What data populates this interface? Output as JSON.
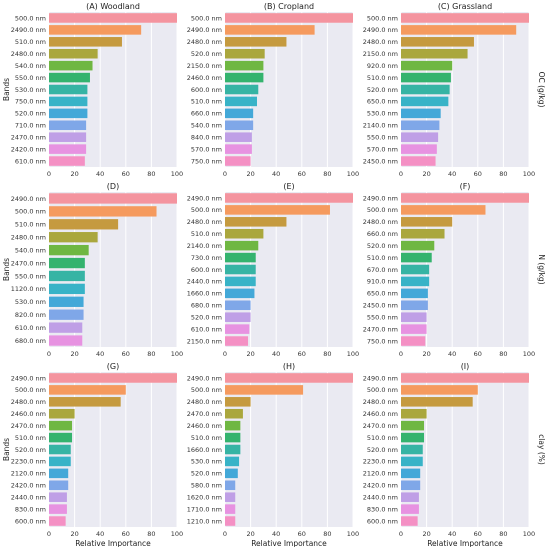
{
  "colors": [
    "#f4949f",
    "#f59a5e",
    "#c59a3f",
    "#aaa73d",
    "#6fb742",
    "#34b36e",
    "#36b4a4",
    "#38b3c7",
    "#43a8d8",
    "#7fa7e8",
    "#bf9fe6",
    "#e792e1",
    "#f490c4"
  ],
  "bar_color_sequence": [
    "#f4949f",
    "#f59a5e",
    "#c59a3f",
    "#aaa73d",
    "#6fb742",
    "#34b36e",
    "#36b4a4",
    "#38b3c7",
    "#43a8d8",
    "#7fa7e8",
    "#bf9fe6",
    "#e792e1",
    "#f490c4"
  ],
  "row_labels": [
    "OC (g/kg)",
    "N (g/kg)",
    "clay (%)"
  ],
  "common_ylabel": "Bands",
  "common_xlabel": "Relative Importance",
  "chart_data": [
    {
      "type": "bar",
      "orientation": "horizontal",
      "title": "(A) Woodland",
      "xlim": [
        0,
        100
      ],
      "categories": [
        "500.0 nm",
        "2490.0 nm",
        "510.0 nm",
        "2480.0 nm",
        "540.0 nm",
        "550.0 nm",
        "530.0 nm",
        "750.0 nm",
        "520.0 nm",
        "710.0 nm",
        "2470.0 nm",
        "2420.0 nm",
        "610.0 nm"
      ],
      "values": [
        100,
        72,
        57,
        38,
        34,
        32,
        30,
        30,
        30,
        29,
        29,
        29,
        28
      ]
    },
    {
      "type": "bar",
      "orientation": "horizontal",
      "title": "(B) Cropland",
      "xlim": [
        0,
        100
      ],
      "categories": [
        "500.0 nm",
        "2490.0 nm",
        "2480.0 nm",
        "520.0 nm",
        "2150.0 nm",
        "2460.0 nm",
        "600.0 nm",
        "510.0 nm",
        "660.0 nm",
        "540.0 nm",
        "840.0 nm",
        "570.0 nm",
        "750.0 nm"
      ],
      "values": [
        100,
        70,
        48,
        31,
        30,
        30,
        26,
        25,
        22,
        22,
        21,
        21,
        20
      ]
    },
    {
      "type": "bar",
      "orientation": "horizontal",
      "title": "(C) Grassland",
      "xlim": [
        0,
        100
      ],
      "categories": [
        "500.0 nm",
        "2490.0 nm",
        "2480.0 nm",
        "2150.0 nm",
        "920.0 nm",
        "510.0 nm",
        "520.0 nm",
        "650.0 nm",
        "530.0 nm",
        "2140.0 nm",
        "550.0 nm",
        "570.0 nm",
        "2450.0 nm"
      ],
      "values": [
        100,
        90,
        57,
        52,
        40,
        39,
        38,
        37,
        31,
        30,
        29,
        28,
        27
      ]
    },
    {
      "type": "bar",
      "orientation": "horizontal",
      "title": "(D)",
      "xlim": [
        0,
        100
      ],
      "categories": [
        "2490.0 nm",
        "500.0 nm",
        "510.0 nm",
        "2480.0 nm",
        "540.0 nm",
        "2470.0 nm",
        "550.0 nm",
        "1120.0 nm",
        "530.0 nm",
        "820.0 nm",
        "610.0 nm",
        "680.0 nm"
      ],
      "values": [
        100,
        84,
        54,
        38,
        31,
        28,
        28,
        28,
        27,
        27,
        26,
        26
      ]
    },
    {
      "type": "bar",
      "orientation": "horizontal",
      "title": "(E)",
      "xlim": [
        0,
        100
      ],
      "categories": [
        "2490.0 nm",
        "500.0 nm",
        "2480.0 nm",
        "510.0 nm",
        "2140.0 nm",
        "730.0 nm",
        "600.0 nm",
        "2440.0 nm",
        "1660.0 nm",
        "680.0 nm",
        "520.0 nm",
        "610.0 nm",
        "2150.0 nm"
      ],
      "values": [
        100,
        82,
        48,
        30,
        26,
        24,
        24,
        24,
        23,
        20,
        20,
        19,
        18
      ]
    },
    {
      "type": "bar",
      "orientation": "horizontal",
      "title": "(F)",
      "xlim": [
        0,
        100
      ],
      "categories": [
        "2490.0 nm",
        "500.0 nm",
        "2480.0 nm",
        "660.0 nm",
        "520.0 nm",
        "510.0 nm",
        "670.0 nm",
        "910.0 nm",
        "650.0 nm",
        "2450.0 nm",
        "550.0 nm",
        "2470.0 nm",
        "750.0 nm"
      ],
      "values": [
        100,
        66,
        40,
        34,
        26,
        24,
        22,
        22,
        21,
        21,
        20,
        20,
        19
      ]
    },
    {
      "type": "bar",
      "orientation": "horizontal",
      "title": "(G)",
      "xlim": [
        0,
        100
      ],
      "categories": [
        "2490.0 nm",
        "500.0 nm",
        "2480.0 nm",
        "2460.0 nm",
        "2470.0 nm",
        "510.0 nm",
        "520.0 nm",
        "2230.0 nm",
        "2120.0 nm",
        "2420.0 nm",
        "2440.0 nm",
        "830.0 nm",
        "600.0 nm"
      ],
      "values": [
        100,
        60,
        56,
        20,
        18,
        18,
        17,
        17,
        15,
        15,
        14,
        14,
        13
      ]
    },
    {
      "type": "bar",
      "orientation": "horizontal",
      "title": "(H)",
      "xlim": [
        0,
        100
      ],
      "categories": [
        "2490.0 nm",
        "500.0 nm",
        "2480.0 nm",
        "2470.0 nm",
        "2460.0 nm",
        "510.0 nm",
        "1660.0 nm",
        "530.0 nm",
        "520.0 nm",
        "580.0 nm",
        "1620.0 nm",
        "1710.0 nm",
        "1210.0 nm"
      ],
      "values": [
        100,
        61,
        20,
        14,
        12,
        12,
        12,
        11,
        10,
        8,
        8,
        8,
        8
      ]
    },
    {
      "type": "bar",
      "orientation": "horizontal",
      "title": "(I)",
      "xlim": [
        0,
        100
      ],
      "categories": [
        "2490.0 nm",
        "500.0 nm",
        "2480.0 nm",
        "2460.0 nm",
        "2470.0 nm",
        "510.0 nm",
        "520.0 nm",
        "2230.0 nm",
        "2120.0 nm",
        "2420.0 nm",
        "2440.0 nm",
        "830.0 nm",
        "600.0 nm"
      ],
      "values": [
        100,
        60,
        56,
        20,
        18,
        18,
        17,
        17,
        15,
        15,
        14,
        14,
        13
      ]
    }
  ]
}
